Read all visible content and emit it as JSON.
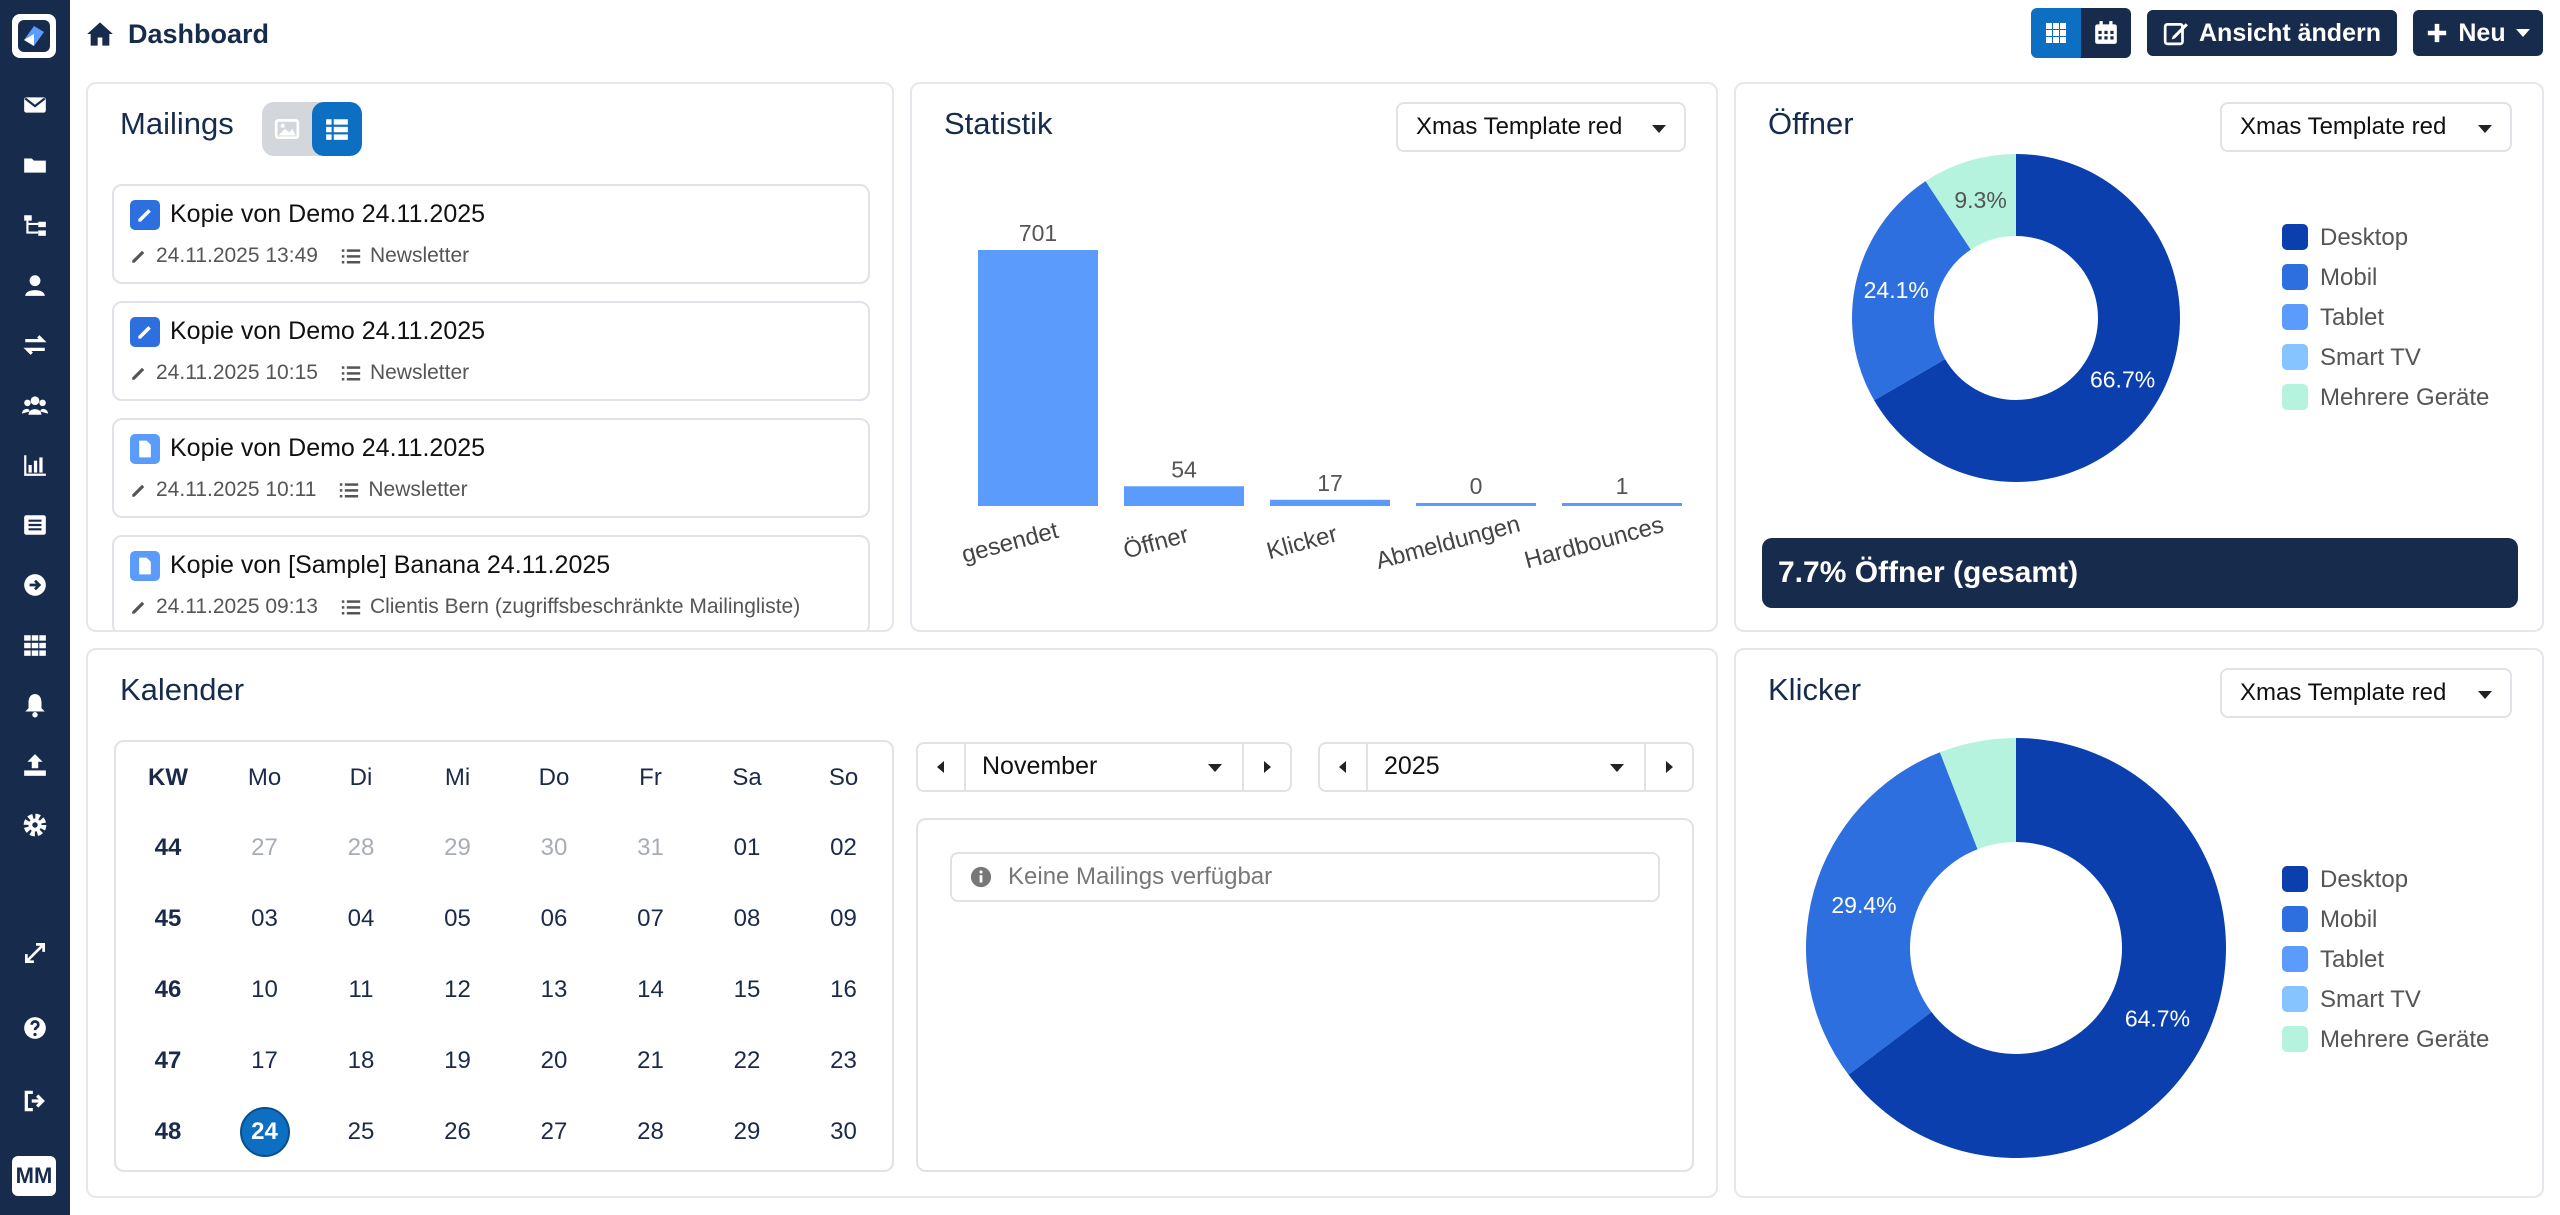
{
  "header": {
    "title": "Dashboard",
    "btn_change_view": "Ansicht ändern",
    "btn_new": "Neu"
  },
  "mailings": {
    "title": "Mailings",
    "items": [
      {
        "title": "Kopie von Demo 24.11.2025",
        "date": "24.11.2025 13:49",
        "list": "Newsletter",
        "icon": "edit-icon"
      },
      {
        "title": "Kopie von Demo 24.11.2025",
        "date": "24.11.2025 10:15",
        "list": "Newsletter",
        "icon": "edit-icon"
      },
      {
        "title": "Kopie von Demo 24.11.2025",
        "date": "24.11.2025 10:11",
        "list": "Newsletter",
        "icon": "file-icon"
      },
      {
        "title": "Kopie von [Sample] Banana 24.11.2025",
        "date": "24.11.2025 09:13",
        "list": "Clientis Bern (zugriffsbeschränkte Mailingliste)",
        "icon": "file-icon"
      }
    ]
  },
  "statistik": {
    "title": "Statistik",
    "select": "Xmas Template red"
  },
  "oeffner": {
    "title": "Öffner",
    "select": "Xmas Template red",
    "banner": "7.7% Öffner (gesamt)"
  },
  "klicker": {
    "title": "Klicker",
    "select": "Xmas Template red"
  },
  "kalender": {
    "title": "Kalender",
    "headers": [
      "KW",
      "Mo",
      "Di",
      "Mi",
      "Do",
      "Fr",
      "Sa",
      "So"
    ],
    "weeks": [
      {
        "kw": "44",
        "days": [
          "27",
          "28",
          "29",
          "30",
          "31",
          "01",
          "02"
        ],
        "muted": 5
      },
      {
        "kw": "45",
        "days": [
          "03",
          "04",
          "05",
          "06",
          "07",
          "08",
          "09"
        ],
        "muted": 0
      },
      {
        "kw": "46",
        "days": [
          "10",
          "11",
          "12",
          "13",
          "14",
          "15",
          "16"
        ],
        "muted": 0
      },
      {
        "kw": "47",
        "days": [
          "17",
          "18",
          "19",
          "20",
          "21",
          "22",
          "23"
        ],
        "muted": 0
      },
      {
        "kw": "48",
        "days": [
          "24",
          "25",
          "26",
          "27",
          "28",
          "29",
          "30"
        ],
        "muted": 0
      }
    ],
    "today": "24",
    "month": "November",
    "year": "2025",
    "empty_message": "Keine Mailings verfügbar"
  },
  "colors": {
    "navy": "#172b4d",
    "accent": "#0d6fc2",
    "bar": "#5a9bfb",
    "desktop": "#0b3fae",
    "mobil": "#2e6fe0",
    "tablet": "#5a9bfb",
    "smarttv": "#86c4ff",
    "mehrere": "#b5f3de"
  },
  "chart_data": [
    {
      "type": "bar",
      "categories": [
        "gesendet",
        "Öffner",
        "Klicker",
        "Abmeldungen",
        "Hardbounces"
      ],
      "values": [
        701,
        54,
        17,
        0,
        1
      ],
      "title": "Statistik"
    },
    {
      "type": "pie",
      "title": "Öffner",
      "labels": [
        "Desktop",
        "Mobil",
        "Tablet",
        "Smart TV",
        "Mehrere Geräte"
      ],
      "values": [
        66.7,
        24.1,
        0,
        0,
        9.3
      ],
      "value_labels": [
        "66.7%",
        "24.1%",
        "",
        "",
        "9.3%"
      ],
      "legend": "right"
    },
    {
      "type": "pie",
      "title": "Klicker",
      "labels": [
        "Desktop",
        "Mobil",
        "Tablet",
        "Smart TV",
        "Mehrere Geräte"
      ],
      "values": [
        64.7,
        29.4,
        0,
        0,
        5.9
      ],
      "value_labels": [
        "64.7%",
        "29.4%",
        "",
        "",
        ""
      ],
      "legend": "right"
    }
  ]
}
